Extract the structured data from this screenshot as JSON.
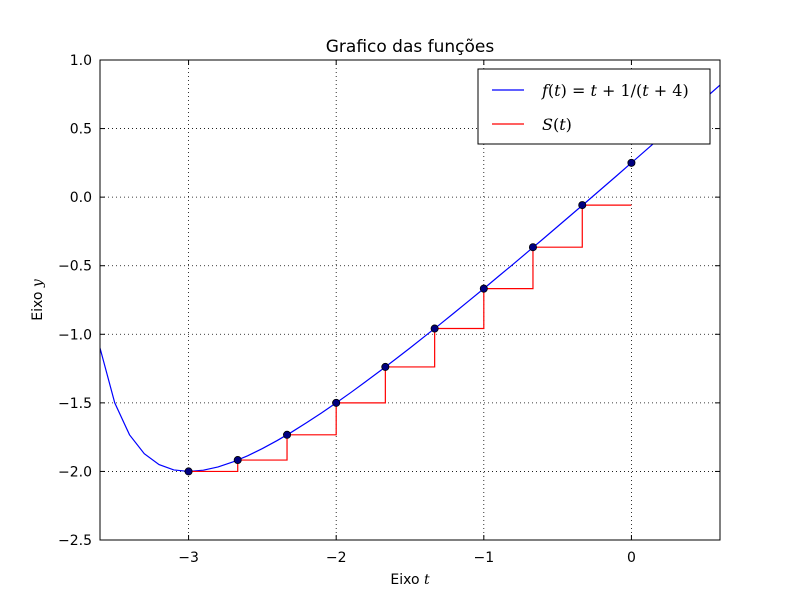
{
  "chart_data": {
    "type": "line",
    "title": "Grafico das funções",
    "xlabel": {
      "prefix": "Eixo",
      "var": "t"
    },
    "ylabel": {
      "prefix": "Eixo",
      "var": "y"
    },
    "xlim": [
      -3.6,
      0.6
    ],
    "ylim": [
      -2.5,
      1.0
    ],
    "grid": true,
    "legend_position": "top-right",
    "x_ticks": [
      {
        "value": -3,
        "label": "−3"
      },
      {
        "value": -2,
        "label": "−2"
      },
      {
        "value": -1,
        "label": "−1"
      },
      {
        "value": 0,
        "label": "0"
      }
    ],
    "y_ticks": [
      {
        "value": -2.5,
        "label": "−2.5"
      },
      {
        "value": -2.0,
        "label": "−2.0"
      },
      {
        "value": -1.5,
        "label": "−1.5"
      },
      {
        "value": -1.0,
        "label": "−1.0"
      },
      {
        "value": -0.5,
        "label": "−0.5"
      },
      {
        "value": 0.0,
        "label": "0.0"
      },
      {
        "value": 0.5,
        "label": "0.5"
      },
      {
        "value": 1.0,
        "label": "1.0"
      }
    ],
    "series": [
      {
        "name": "f(t) = t + 1/(t + 4)",
        "kind": "line",
        "color": "#0000ff",
        "x": [
          -3.6,
          -3.5,
          -3.4,
          -3.3,
          -3.2,
          -3.1,
          -3.0,
          -2.9,
          -2.8,
          -2.7,
          -2.6,
          -2.5,
          -2.4,
          -2.3,
          -2.2,
          -2.1,
          -2.0,
          -1.9,
          -1.8,
          -1.7,
          -1.6,
          -1.5,
          -1.4,
          -1.3,
          -1.2,
          -1.1,
          -1.0,
          -0.9,
          -0.8,
          -0.7,
          -0.6,
          -0.5,
          -0.4,
          -0.3,
          -0.2,
          -0.1,
          0.0,
          0.1,
          0.2,
          0.3,
          0.4,
          0.5,
          0.6
        ],
        "y": [
          -1.1,
          -1.5,
          -1.733,
          -1.871,
          -1.95,
          -1.989,
          -2.0,
          -1.991,
          -1.967,
          -1.931,
          -1.886,
          -1.833,
          -1.775,
          -1.712,
          -1.644,
          -1.574,
          -1.5,
          -1.424,
          -1.345,
          -1.265,
          -1.183,
          -1.1,
          -1.015,
          -0.93,
          -0.843,
          -0.755,
          -0.667,
          -0.577,
          -0.488,
          -0.397,
          -0.306,
          -0.214,
          -0.122,
          -0.03,
          0.063,
          0.156,
          0.25,
          0.344,
          0.438,
          0.533,
          0.627,
          0.722,
          0.817
        ]
      },
      {
        "name": "S(t)",
        "kind": "step",
        "color": "#ff0000",
        "x": [
          -3.0,
          -2.667,
          -2.333,
          -2.0,
          -1.667,
          -1.333,
          -1.0,
          -0.667,
          -0.333,
          0.0
        ],
        "y": [
          -2.0,
          -1.917,
          -1.733,
          -1.5,
          -1.238,
          -0.958,
          -0.667,
          -0.365,
          -0.058,
          -0.058
        ]
      },
      {
        "name": "",
        "kind": "scatter",
        "color": "#000080",
        "x": [
          -3.0,
          -2.667,
          -2.333,
          -2.0,
          -1.667,
          -1.333,
          -1.0,
          -0.667,
          -0.333,
          0.0
        ],
        "y": [
          -2.0,
          -1.917,
          -1.733,
          -1.5,
          -1.238,
          -0.958,
          -0.667,
          -0.365,
          -0.058,
          0.25
        ]
      }
    ],
    "legend": [
      {
        "series": "f(t) = t + 1/(t + 4)",
        "color": "#0000ff",
        "parts": [
          {
            "text": "f",
            "italic": true
          },
          {
            "text": "(",
            "italic": false
          },
          {
            "text": "t",
            "italic": true
          },
          {
            "text": ") = ",
            "italic": false
          },
          {
            "text": "t",
            "italic": true
          },
          {
            "text": " + 1/(",
            "italic": false
          },
          {
            "text": "t",
            "italic": true
          },
          {
            "text": " + 4)",
            "italic": false
          }
        ]
      },
      {
        "series": "S(t)",
        "color": "#ff0000",
        "parts": [
          {
            "text": "S",
            "italic": true
          },
          {
            "text": "(",
            "italic": false
          },
          {
            "text": "t",
            "italic": true
          },
          {
            "text": ")",
            "italic": false
          }
        ]
      }
    ]
  }
}
